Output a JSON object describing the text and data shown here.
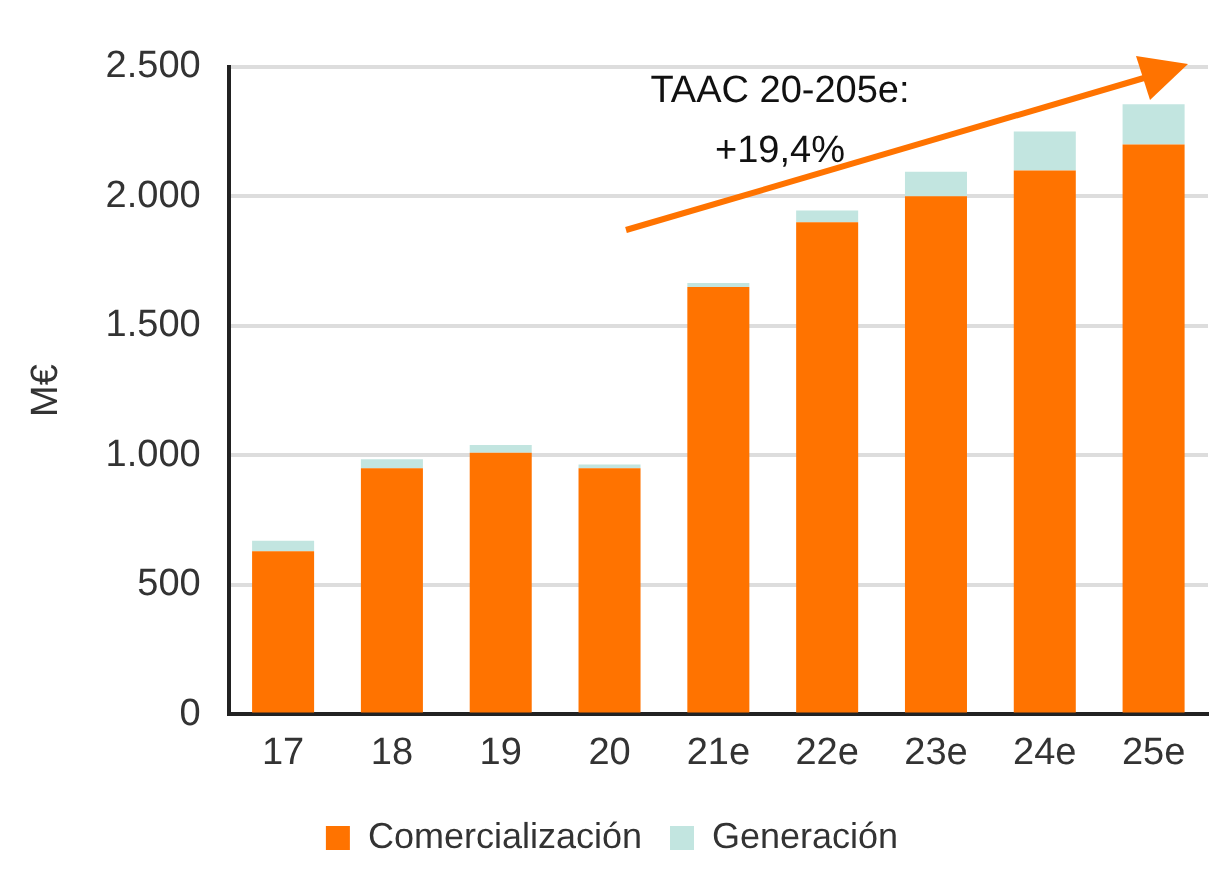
{
  "chart_data": {
    "type": "bar",
    "stacked": true,
    "ylabel": "M€",
    "categories": [
      "17",
      "18",
      "19",
      "20",
      "21e",
      "22e",
      "23e",
      "24e",
      "25e"
    ],
    "series": [
      {
        "name": "Comercialización",
        "color": "#ff7300",
        "values": [
          630,
          950,
          1010,
          950,
          1650,
          1900,
          2000,
          2100,
          2200
        ]
      },
      {
        "name": "Generación",
        "color": "#c2e5e0",
        "values": [
          40,
          35,
          30,
          15,
          15,
          45,
          95,
          150,
          155
        ]
      }
    ],
    "ylim": [
      0,
      2500
    ],
    "yticks": [
      {
        "value": 0,
        "label": "0"
      },
      {
        "value": 500,
        "label": "500"
      },
      {
        "value": 1000,
        "label": "1.000"
      },
      {
        "value": 1500,
        "label": "1.500"
      },
      {
        "value": 2000,
        "label": "2.000"
      },
      {
        "value": 2500,
        "label": "2.500"
      }
    ],
    "grid": "y",
    "legend": "bottom",
    "annotations": [
      "TAAC 20-205e:",
      "+19,4%"
    ]
  }
}
